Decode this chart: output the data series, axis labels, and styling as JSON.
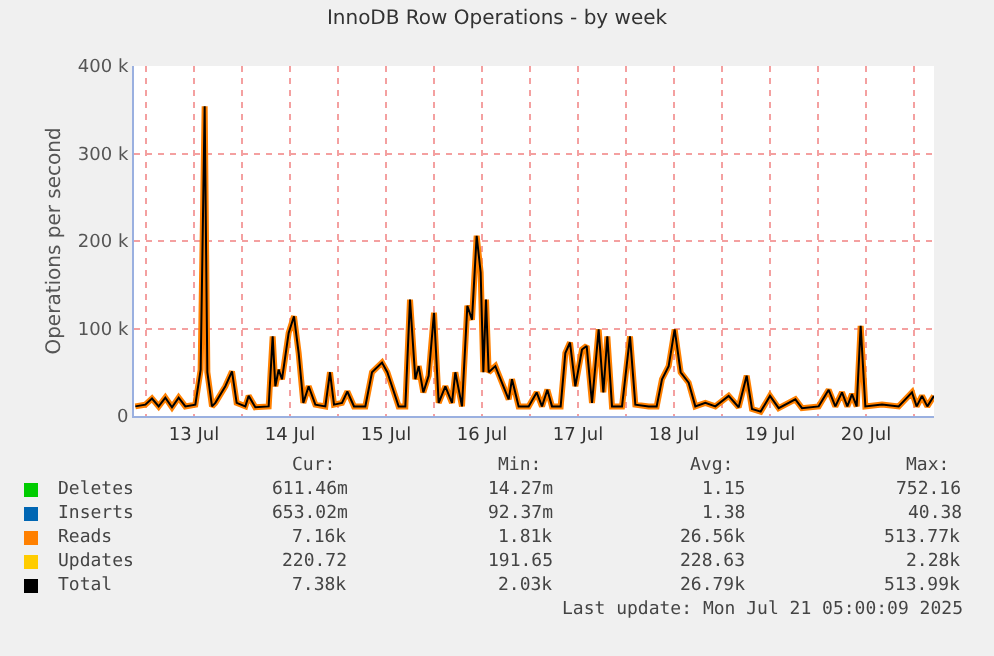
{
  "chart_data": {
    "type": "line",
    "title": "InnoDB Row Operations - by week",
    "ylabel": "Operations per second",
    "xlim": [
      "2025-07-12T21:00",
      "2025-07-21T05:00"
    ],
    "ylim": [
      0,
      400000
    ],
    "yticks": [
      0,
      {
        "value": 100000,
        "label": "100 k"
      },
      {
        "value": 200000,
        "label": "200 k"
      },
      {
        "value": 300000,
        "label": "300 k"
      },
      {
        "value": 400000,
        "label": "400 k"
      }
    ],
    "xticks": [
      {
        "value": "2025-07-13T00:00",
        "label": null
      },
      {
        "value": "2025-07-13T12:00",
        "label": "13 Jul"
      },
      {
        "value": "2025-07-14T00:00",
        "label": null
      },
      {
        "value": "2025-07-14T12:00",
        "label": "14 Jul"
      },
      {
        "value": "2025-07-15T00:00",
        "label": null
      },
      {
        "value": "2025-07-15T12:00",
        "label": "15 Jul"
      },
      {
        "value": "2025-07-16T00:00",
        "label": null
      },
      {
        "value": "2025-07-16T12:00",
        "label": "16 Jul"
      },
      {
        "value": "2025-07-17T00:00",
        "label": null
      },
      {
        "value": "2025-07-17T12:00",
        "label": "17 Jul"
      },
      {
        "value": "2025-07-18T00:00",
        "label": null
      },
      {
        "value": "2025-07-18T12:00",
        "label": "18 Jul"
      },
      {
        "value": "2025-07-19T00:00",
        "label": null
      },
      {
        "value": "2025-07-19T12:00",
        "label": "19 Jul"
      },
      {
        "value": "2025-07-20T00:00",
        "label": null
      },
      {
        "value": "2025-07-20T12:00",
        "label": "20 Jul"
      },
      {
        "value": "2025-07-21T00:00",
        "label": null
      }
    ],
    "x": [
      "2025-07-12T21:20",
      "2025-07-12T23:50",
      "2025-07-13T01:30",
      "2025-07-13T03:10",
      "2025-07-13T04:50",
      "2025-07-13T06:30",
      "2025-07-13T08:10",
      "2025-07-13T09:50",
      "2025-07-13T12:20",
      "2025-07-13T13:40",
      "2025-07-13T14:40",
      "2025-07-13T15:20",
      "2025-07-13T16:30",
      "2025-07-13T17:20",
      "2025-07-13T19:50",
      "2025-07-13T21:30",
      "2025-07-13T22:40",
      "2025-07-14T00:50",
      "2025-07-14T01:40",
      "2025-07-14T03:20",
      "2025-07-14T06:40",
      "2025-07-14T07:40",
      "2025-07-14T08:20",
      "2025-07-14T09:10",
      "2025-07-14T10:00",
      "2025-07-14T11:40",
      "2025-07-14T13:00",
      "2025-07-14T14:10",
      "2025-07-14T15:20",
      "2025-07-14T16:40",
      "2025-07-14T18:20",
      "2025-07-14T20:50",
      "2025-07-14T22:00",
      "2025-07-14T23:00",
      "2025-07-15T01:00",
      "2025-07-15T02:20",
      "2025-07-15T04:00",
      "2025-07-15T06:50",
      "2025-07-15T08:30",
      "2025-07-15T11:00",
      "2025-07-15T12:20",
      "2025-07-15T13:30",
      "2025-07-15T15:10",
      "2025-07-15T16:50",
      "2025-07-15T18:00",
      "2025-07-15T19:20",
      "2025-07-15T20:10",
      "2025-07-15T21:20",
      "2025-07-15T22:40",
      "2025-07-16T00:00",
      "2025-07-16T01:10",
      "2025-07-16T02:50",
      "2025-07-16T04:30",
      "2025-07-16T05:20",
      "2025-07-16T07:00",
      "2025-07-16T08:20",
      "2025-07-16T09:30",
      "2025-07-16T10:40",
      "2025-07-16T11:40",
      "2025-07-16T12:20",
      "2025-07-16T13:00",
      "2025-07-16T13:40",
      "2025-07-16T15:20",
      "2025-07-16T17:00",
      "2025-07-16T18:40",
      "2025-07-16T19:30",
      "2025-07-16T21:10",
      "2025-07-16T23:40",
      "2025-07-17T01:40",
      "2025-07-17T03:00",
      "2025-07-17T04:20",
      "2025-07-17T05:30",
      "2025-07-17T07:40",
      "2025-07-17T08:50",
      "2025-07-17T10:00",
      "2025-07-17T11:20",
      "2025-07-17T13:00",
      "2025-07-17T14:10",
      "2025-07-17T15:30",
      "2025-07-17T17:10",
      "2025-07-17T18:20",
      "2025-07-17T19:20",
      "2025-07-17T20:30",
      "2025-07-17T23:00",
      "2025-07-18T01:00",
      "2025-07-18T02:20",
      "2025-07-18T05:40",
      "2025-07-18T07:40",
      "2025-07-18T09:00",
      "2025-07-18T10:40",
      "2025-07-18T12:10",
      "2025-07-18T13:40",
      "2025-07-18T15:40",
      "2025-07-18T17:20",
      "2025-07-18T19:50",
      "2025-07-18T22:20",
      "2025-07-19T01:40",
      "2025-07-19T04:10",
      "2025-07-19T06:10",
      "2025-07-19T07:30",
      "2025-07-19T09:40",
      "2025-07-19T12:00",
      "2025-07-19T14:10",
      "2025-07-19T18:20",
      "2025-07-19T20:00",
      "2025-07-20T00:10",
      "2025-07-20T02:40",
      "2025-07-20T04:20",
      "2025-07-20T06:00",
      "2025-07-20T07:20",
      "2025-07-20T08:30",
      "2025-07-20T09:40",
      "2025-07-20T10:40",
      "2025-07-20T11:50",
      "2025-07-20T16:00",
      "2025-07-20T20:10",
      "2025-07-20T23:30",
      "2025-07-21T00:40",
      "2025-07-21T02:00",
      "2025-07-21T03:20",
      "2025-07-21T05:00"
    ],
    "series": [
      {
        "name": "Deletes",
        "color": "#00cc00",
        "values": [
          null,
          null,
          null,
          null,
          null,
          null,
          null,
          null,
          null,
          null,
          null,
          null,
          null,
          null,
          null,
          null,
          null,
          null,
          null,
          null,
          null,
          null,
          null,
          null,
          null,
          null,
          null,
          null,
          null,
          null,
          null,
          null,
          null,
          null,
          null,
          null,
          null,
          null,
          null,
          null,
          null,
          null,
          null,
          null,
          null,
          null,
          null,
          null,
          null,
          null,
          null,
          null,
          null,
          null,
          null,
          null,
          null,
          null,
          null,
          null,
          null,
          null,
          null,
          null,
          null,
          null,
          null,
          null,
          null,
          null,
          null,
          null,
          null,
          null,
          null,
          null,
          null,
          null,
          null,
          null,
          null,
          null,
          null,
          null,
          null,
          null,
          null,
          null,
          null,
          null,
          null,
          null,
          null,
          null,
          null,
          null,
          null,
          null,
          null,
          null,
          null,
          null,
          null,
          null,
          null,
          null,
          null,
          null,
          null,
          null,
          null,
          null,
          null,
          null,
          null,
          null,
          null,
          null,
          null,
          null,
          null
        ]
      },
      {
        "name": "Inserts",
        "color": "#0066b3",
        "values": [
          null,
          null,
          null,
          null,
          null,
          null,
          null,
          null,
          null,
          null,
          null,
          null,
          null,
          null,
          null,
          null,
          null,
          null,
          null,
          null,
          null,
          null,
          null,
          null,
          null,
          null,
          null,
          null,
          null,
          null,
          null,
          null,
          null,
          null,
          null,
          null,
          null,
          null,
          null,
          null,
          null,
          null,
          null,
          null,
          null,
          null,
          null,
          null,
          null,
          null,
          null,
          null,
          null,
          null,
          null,
          null,
          null,
          null,
          null,
          null,
          null,
          null,
          null,
          null,
          null,
          null,
          null,
          null,
          null,
          null,
          null,
          null,
          null,
          null,
          null,
          null,
          null,
          null,
          null,
          null,
          null,
          null,
          null,
          null,
          null,
          null,
          null,
          null,
          null,
          null,
          null,
          null,
          null,
          null,
          null,
          null,
          null,
          null,
          null,
          null,
          null,
          null,
          null,
          null,
          null,
          null,
          null,
          null,
          null,
          null,
          null,
          null,
          null,
          null,
          null,
          null,
          null,
          null,
          null,
          null,
          null
        ]
      },
      {
        "name": "Reads",
        "color": "#ff8000",
        "values": [
          11000,
          13000,
          20000,
          11000,
          21000,
          10000,
          21000,
          11000,
          13000,
          53000,
          354000,
          50000,
          11000,
          15000,
          34000,
          51000,
          15000,
          11000,
          23000,
          10000,
          11000,
          91000,
          34000,
          53000,
          42000,
          95000,
          114000,
          72000,
          15000,
          34000,
          13000,
          11000,
          50000,
          13000,
          15000,
          28000,
          11000,
          11000,
          50000,
          61000,
          50000,
          34000,
          11000,
          11000,
          133000,
          42000,
          57000,
          27000,
          46000,
          118000,
          15000,
          34000,
          15000,
          50000,
          11000,
          126000,
          110000,
          206000,
          164000,
          50000,
          133000,
          50000,
          57000,
          38000,
          19000,
          42000,
          11000,
          11000,
          27000,
          11000,
          30000,
          11000,
          11000,
          72000,
          84000,
          34000,
          76000,
          80000,
          15000,
          99000,
          27000,
          91000,
          11000,
          11000,
          91000,
          13000,
          11000,
          11000,
          42000,
          57000,
          99000,
          50000,
          38000,
          11000,
          15000,
          11000,
          23000,
          10000,
          46000,
          8000,
          5000,
          23000,
          9000,
          19000,
          9000,
          11000,
          30000,
          11000,
          27000,
          11000,
          25000,
          11000,
          103000,
          11000,
          13000,
          11000,
          27000,
          11000,
          23000,
          11000,
          23000
        ]
      },
      {
        "name": "Updates",
        "color": "#ffcc00",
        "values": [
          null,
          null,
          null,
          null,
          null,
          null,
          null,
          null,
          null,
          null,
          null,
          null,
          null,
          null,
          null,
          null,
          null,
          null,
          null,
          null,
          null,
          null,
          null,
          null,
          null,
          null,
          null,
          null,
          null,
          null,
          null,
          null,
          null,
          null,
          null,
          null,
          null,
          null,
          null,
          null,
          null,
          null,
          null,
          null,
          null,
          null,
          null,
          null,
          null,
          null,
          null,
          null,
          null,
          null,
          null,
          null,
          null,
          null,
          null,
          null,
          null,
          null,
          null,
          null,
          null,
          null,
          null,
          null,
          null,
          null,
          null,
          null,
          null,
          null,
          null,
          null,
          null,
          null,
          null,
          null,
          null,
          null,
          null,
          null,
          null,
          null,
          null,
          null,
          null,
          null,
          null,
          null,
          null,
          null,
          null,
          null,
          null,
          null,
          null,
          null,
          null,
          null,
          null,
          null,
          null,
          null,
          null,
          null,
          null,
          null,
          null,
          null,
          null,
          null,
          null,
          null,
          null,
          null,
          null,
          null,
          null
        ]
      },
      {
        "name": "Total",
        "color": "#000000",
        "values": [
          11000,
          13000,
          20000,
          11000,
          21000,
          10000,
          21000,
          11000,
          13000,
          53000,
          354000,
          50000,
          11000,
          15000,
          34000,
          51000,
          15000,
          11000,
          23000,
          10000,
          11000,
          91000,
          34000,
          53000,
          42000,
          95000,
          114000,
          72000,
          15000,
          34000,
          13000,
          11000,
          50000,
          13000,
          15000,
          28000,
          11000,
          11000,
          50000,
          61000,
          50000,
          34000,
          11000,
          11000,
          133000,
          42000,
          57000,
          27000,
          46000,
          118000,
          15000,
          34000,
          15000,
          50000,
          11000,
          126000,
          110000,
          206000,
          164000,
          50000,
          133000,
          50000,
          57000,
          38000,
          19000,
          42000,
          11000,
          11000,
          27000,
          11000,
          30000,
          11000,
          11000,
          72000,
          84000,
          34000,
          76000,
          80000,
          15000,
          99000,
          27000,
          91000,
          11000,
          11000,
          91000,
          13000,
          11000,
          11000,
          42000,
          57000,
          99000,
          50000,
          38000,
          11000,
          15000,
          11000,
          23000,
          10000,
          46000,
          8000,
          5000,
          23000,
          9000,
          19000,
          9000,
          11000,
          30000,
          11000,
          27000,
          11000,
          25000,
          11000,
          103000,
          11000,
          13000,
          11000,
          27000,
          11000,
          23000,
          11000,
          23000
        ]
      }
    ],
    "grid": true,
    "legend": "bottom left",
    "marker": "none",
    "line_style": "solid",
    "annotations": [
      "Cur:",
      "Min:",
      "Avg:",
      "Max:",
      "611.46m",
      "14.27m",
      "1.15",
      "752.16",
      "653.02m",
      "92.37m",
      "1.38",
      "40.38",
      "7.16k",
      "1.81k",
      "26.56k",
      "513.77k",
      "220.72",
      "191.65",
      "228.63",
      "2.28k",
      "7.38k",
      "2.03k",
      "26.79k",
      "513.99k",
      "Last update: Mon Jul 21 05:00:09 2025"
    ]
  }
}
